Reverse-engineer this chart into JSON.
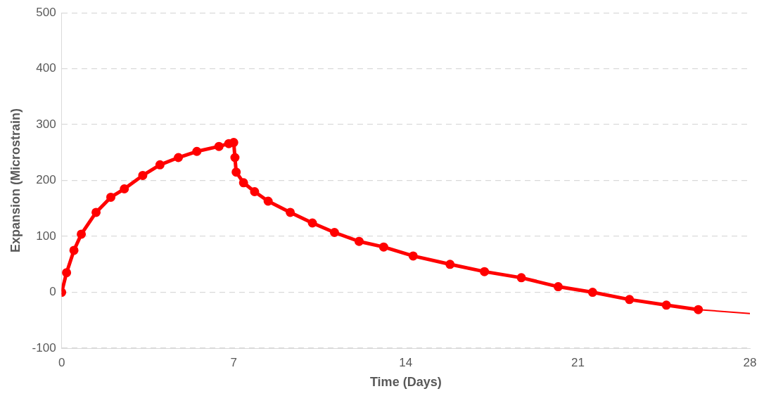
{
  "chart_data": {
    "type": "line",
    "xlabel": "Time (Days)",
    "ylabel": "Expansion (Microstrain)",
    "xlim": [
      0,
      28
    ],
    "xticks": [
      0,
      7,
      14,
      21,
      28
    ],
    "ylim": [
      -100,
      500
    ],
    "yticks": [
      -100,
      0,
      100,
      200,
      300,
      400,
      500
    ],
    "grid": "y",
    "legend": false,
    "series": [
      {
        "color": "#ff0000",
        "marker": "circle",
        "x": [
          0,
          0.2,
          0.5,
          0.8,
          1.4,
          2,
          2.55,
          3.3,
          4,
          4.75,
          5.5,
          6.4,
          6.8,
          7,
          7.05,
          7.1,
          7.4,
          7.85,
          8.4,
          9.3,
          10.2,
          11.1,
          12.1,
          13.1,
          14.3,
          15.8,
          17.2,
          18.7,
          20.2,
          21.6,
          23.1,
          24.6,
          25.9
        ],
        "values": [
          0,
          35,
          75,
          104,
          143,
          170,
          185,
          209,
          228,
          241,
          252,
          261,
          266,
          268,
          241,
          215,
          196,
          180,
          163,
          143,
          124,
          107,
          91,
          81,
          65,
          50,
          37,
          26,
          10,
          0,
          -13,
          -23,
          -31
        ]
      },
      {
        "color": "#ff0000",
        "marker": "none",
        "x": [
          25.9,
          28
        ],
        "values": [
          -31,
          -38
        ]
      }
    ]
  }
}
